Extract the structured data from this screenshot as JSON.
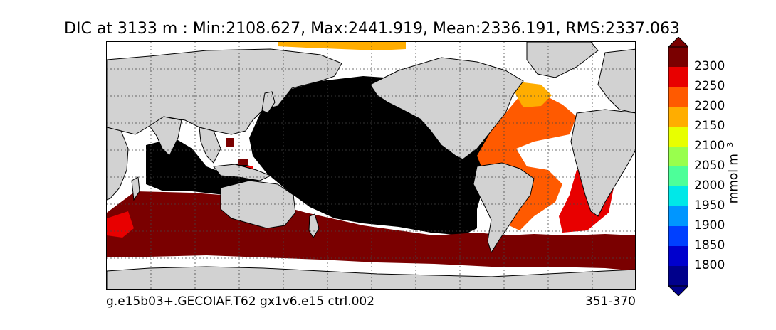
{
  "title": "DIC at 3133 m : Min:2108.627, Max:2441.919, Mean:2336.191, RMS:2337.063",
  "footer": {
    "case_name": "g.e15b03+.GECOIAF.T62 gx1v6.e15 ctrl.002",
    "years": "351-370"
  },
  "colorbar": {
    "unit_base": "mmol m",
    "unit_exp": "−3",
    "tick_labels": [
      "1800",
      "1850",
      "1900",
      "1950",
      "2000",
      "2050",
      "2100",
      "2150",
      "2200",
      "2250",
      "2300"
    ],
    "colors": [
      "#00008b",
      "#0000cd",
      "#0040ff",
      "#0096ff",
      "#00e8e8",
      "#4dff99",
      "#99ff4d",
      "#e8ff00",
      "#ffad00",
      "#ff5a00",
      "#e80000",
      "#7a0000"
    ],
    "under_color": "#00008b",
    "over_color": "#7a0000"
  },
  "map": {
    "land_color": "#d2d2d2",
    "missing_color": "#ffffff",
    "grid": true,
    "projection": "cylindrical"
  }
}
